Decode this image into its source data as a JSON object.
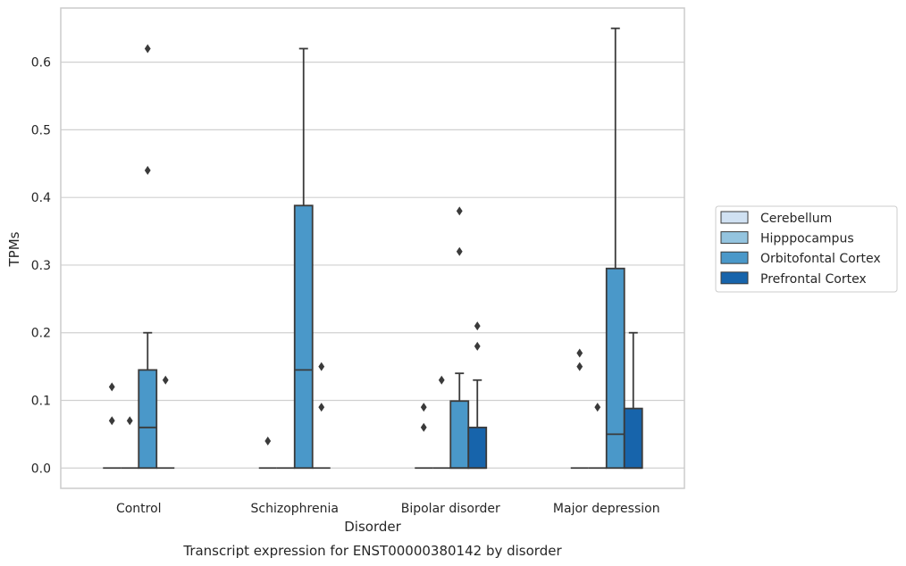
{
  "chart_data": {
    "type": "box",
    "xlabel": "Disorder",
    "ylabel": "TPMs",
    "caption": "Transcript expression for ENST00000380142 by disorder",
    "ylim": [
      -0.03,
      0.68
    ],
    "yticks": [
      0.0,
      0.1,
      0.2,
      0.3,
      0.4,
      0.5,
      0.6
    ],
    "ytick_labels": [
      "0.0",
      "0.1",
      "0.2",
      "0.3",
      "0.4",
      "0.5",
      "0.6"
    ],
    "grid": "horizontal",
    "legend_position": "right",
    "categories": [
      "Control",
      "Schizophrenia",
      "Bipolar disorder",
      "Major depression"
    ],
    "series": [
      {
        "name": "Cerebellum",
        "color": "#d0e1f2",
        "boxes": [
          {
            "category": "Control",
            "q1": 0,
            "median": 0,
            "q3": 0,
            "whisker_low": 0,
            "whisker_high": 0,
            "outliers": [
              0.07,
              0.12
            ]
          },
          {
            "category": "Schizophrenia",
            "q1": 0,
            "median": 0,
            "q3": 0,
            "whisker_low": 0,
            "whisker_high": 0,
            "outliers": [
              0.04
            ]
          },
          {
            "category": "Bipolar disorder",
            "q1": 0,
            "median": 0,
            "q3": 0,
            "whisker_low": 0,
            "whisker_high": 0,
            "outliers": [
              0.06,
              0.09
            ]
          },
          {
            "category": "Major depression",
            "q1": 0,
            "median": 0,
            "q3": 0,
            "whisker_low": 0,
            "whisker_high": 0,
            "outliers": [
              0.15,
              0.17
            ]
          }
        ]
      },
      {
        "name": "Hipppocampus",
        "color": "#94c4df",
        "boxes": [
          {
            "category": "Control",
            "q1": 0,
            "median": 0,
            "q3": 0,
            "whisker_low": 0,
            "whisker_high": 0,
            "outliers": [
              0.07
            ]
          },
          {
            "category": "Schizophrenia",
            "q1": 0,
            "median": 0,
            "q3": 0,
            "whisker_low": 0,
            "whisker_high": 0,
            "outliers": []
          },
          {
            "category": "Bipolar disorder",
            "q1": 0,
            "median": 0,
            "q3": 0,
            "whisker_low": 0,
            "whisker_high": 0,
            "outliers": [
              0.13
            ]
          },
          {
            "category": "Major depression",
            "q1": 0,
            "median": 0,
            "q3": 0,
            "whisker_low": 0,
            "whisker_high": 0,
            "outliers": [
              0.09
            ]
          }
        ]
      },
      {
        "name": "Orbitofontal Cortex",
        "color": "#4a98c9",
        "boxes": [
          {
            "category": "Control",
            "q1": 0,
            "median": 0.06,
            "q3": 0.145,
            "whisker_low": 0,
            "whisker_high": 0.2,
            "outliers": [
              0.44,
              0.62
            ]
          },
          {
            "category": "Schizophrenia",
            "q1": 0,
            "median": 0.145,
            "q3": 0.388,
            "whisker_low": 0,
            "whisker_high": 0.62,
            "outliers": []
          },
          {
            "category": "Bipolar disorder",
            "q1": 0,
            "median": 0,
            "q3": 0.099,
            "whisker_low": 0,
            "whisker_high": 0.14,
            "outliers": [
              0.32,
              0.38
            ]
          },
          {
            "category": "Major depression",
            "q1": 0,
            "median": 0.05,
            "q3": 0.295,
            "whisker_low": 0,
            "whisker_high": 0.65,
            "outliers": []
          }
        ]
      },
      {
        "name": "Prefrontal Cortex",
        "color": "#1764ab",
        "boxes": [
          {
            "category": "Control",
            "q1": 0,
            "median": 0,
            "q3": 0,
            "whisker_low": 0,
            "whisker_high": 0,
            "outliers": [
              0.13
            ]
          },
          {
            "category": "Schizophrenia",
            "q1": 0,
            "median": 0,
            "q3": 0,
            "whisker_low": 0,
            "whisker_high": 0,
            "outliers": [
              0.09,
              0.15
            ]
          },
          {
            "category": "Bipolar disorder",
            "q1": 0,
            "median": 0,
            "q3": 0.06,
            "whisker_low": 0,
            "whisker_high": 0.13,
            "outliers": [
              0.18,
              0.21
            ]
          },
          {
            "category": "Major depression",
            "q1": 0,
            "median": 0,
            "q3": 0.088,
            "whisker_low": 0,
            "whisker_high": 0.2,
            "outliers": []
          }
        ]
      }
    ]
  }
}
